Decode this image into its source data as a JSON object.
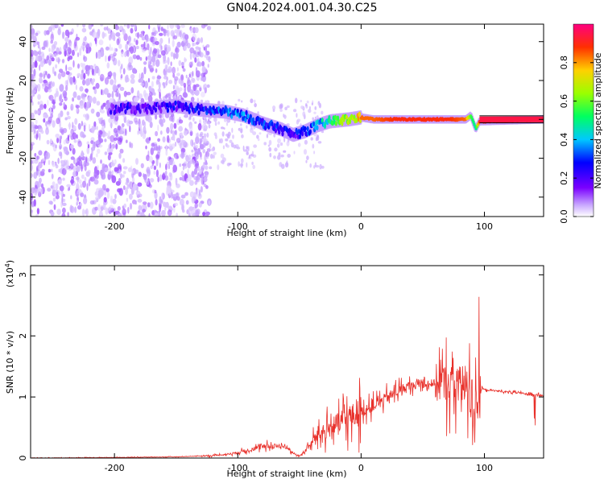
{
  "title": "GN04.2024.001.04.30.C25",
  "chart_data": [
    {
      "type": "heatmap",
      "xlabel": "Height of straight line (km)",
      "ylabel": "Frequency (Hz)",
      "xlim": [
        -268,
        148
      ],
      "ylim": [
        -50,
        49
      ],
      "x_ticks": [
        -200,
        -100,
        0,
        100
      ],
      "y_ticks": [
        -40,
        -20,
        0,
        20,
        40
      ],
      "colorbar": {
        "label": "Normalized spectral amplitude",
        "range": [
          0.0,
          1.0
        ],
        "ticks": [
          0.0,
          0.2,
          0.4,
          0.6,
          0.8
        ],
        "tick_labels": [
          "0.0",
          "0.2",
          "0.4",
          "0.6",
          "0.8"
        ],
        "colors": [
          "#ffffff",
          "#c9a8ff",
          "#7a00ff",
          "#0000ff",
          "#00c8ff",
          "#00ff60",
          "#9aff00",
          "#ffd000",
          "#ff3000",
          "#ff0080"
        ]
      },
      "ridge": {
        "x": [
          -205,
          -190,
          -180,
          -150,
          -130,
          -110,
          -95,
          -80,
          -65,
          -55,
          -45,
          -35,
          -25,
          -10,
          0,
          10,
          30,
          50,
          70,
          85,
          89,
          93,
          96,
          148
        ],
        "frequency": [
          5,
          6,
          5,
          7,
          5,
          4,
          2,
          -2,
          -5,
          -8,
          -6,
          -3,
          -1,
          0,
          1,
          0,
          0,
          0,
          0,
          0,
          2,
          -5,
          -1,
          0
        ],
        "amplitude": [
          0.3,
          0.35,
          0.3,
          0.35,
          0.4,
          0.45,
          0.45,
          0.4,
          0.4,
          0.35,
          0.4,
          0.5,
          0.6,
          0.75,
          0.85,
          0.85,
          0.9,
          0.9,
          0.9,
          0.85,
          0.6,
          0.5,
          0.9,
          0.95
        ]
      }
    },
    {
      "type": "line",
      "xlabel": "Height of straight line (km)",
      "ylabel": "SNR (10 * v/v)",
      "y_scale_label": "(x10",
      "y_scale_exp": "4",
      "xlim": [
        -268,
        148
      ],
      "ylim": [
        0,
        3.15
      ],
      "x_ticks": [
        -200,
        -100,
        0,
        100
      ],
      "y_ticks": [
        0,
        1,
        2,
        3
      ],
      "color": "#e8302a",
      "series": [
        {
          "x": [
            -268,
            -200,
            -150,
            -120,
            -110,
            -100,
            -90,
            -80,
            -70,
            -60,
            -55,
            -50,
            -45,
            -40,
            -35,
            -30,
            -25,
            -20,
            -15,
            -10,
            0,
            10,
            20,
            30,
            40,
            50,
            60,
            70,
            80,
            85,
            90,
            95,
            98,
            100,
            110,
            120,
            130,
            140,
            148
          ],
          "y": [
            0.0,
            0.01,
            0.02,
            0.04,
            0.06,
            0.09,
            0.14,
            0.18,
            0.2,
            0.18,
            0.08,
            0.03,
            0.12,
            0.25,
            0.4,
            0.42,
            0.5,
            0.55,
            0.6,
            0.65,
            0.75,
            0.85,
            0.98,
            1.1,
            1.18,
            1.22,
            1.23,
            1.22,
            1.2,
            1.15,
            1.0,
            0.9,
            1.15,
            1.12,
            1.1,
            1.08,
            1.06,
            1.04,
            1.02
          ]
        }
      ]
    }
  ]
}
